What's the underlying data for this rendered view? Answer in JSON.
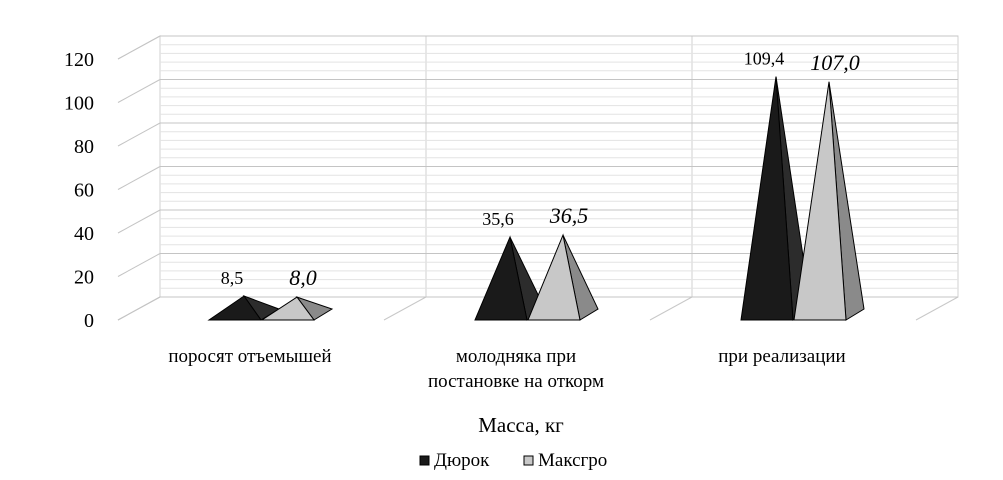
{
  "chart_data": {
    "type": "bar",
    "style": "3d-pyramid",
    "categories": [
      [
        "поросят отъемышей"
      ],
      [
        "молодняка при",
        "постановке на откорм"
      ],
      [
        "при реализации"
      ]
    ],
    "series": [
      {
        "name": "Дюрок",
        "values": [
          8.5,
          35.6,
          109.4
        ],
        "labels": [
          "8,5",
          "35,6",
          "109,4"
        ],
        "color": "#1a1a1a"
      },
      {
        "name": "Максгро",
        "values": [
          8.0,
          36.5,
          107.0
        ],
        "labels": [
          "8,0",
          "36,5",
          "107,0"
        ],
        "color": "#c8c8c8"
      }
    ],
    "xlabel": "Масса, кг",
    "ylim": [
      0,
      120
    ],
    "yticks": [
      "0",
      "20",
      "40",
      "60",
      "80",
      "100",
      "120"
    ],
    "grid": true,
    "legend": "bottom"
  }
}
